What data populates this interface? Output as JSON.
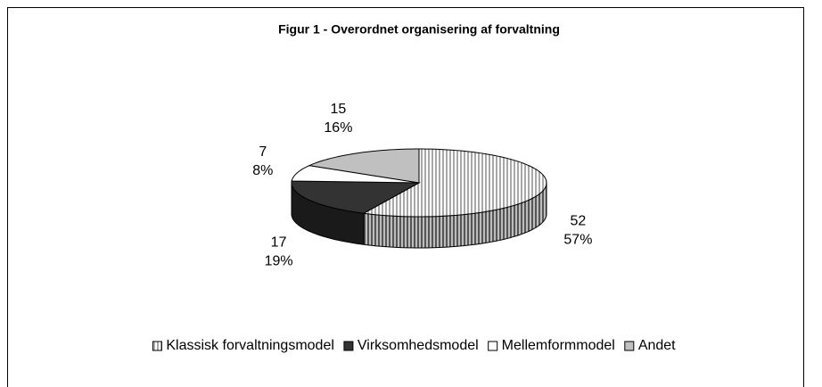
{
  "chart_data": {
    "type": "pie3d",
    "title": "Figur 1 - Overordnet organisering af forvaltning",
    "categories": [
      "Klassisk forvaltningsmodel",
      "Virksomhedsmodel",
      "Mellemformmodel",
      "Andet"
    ],
    "values": [
      52,
      17,
      7,
      15
    ],
    "percent_labels": [
      "57%",
      "19%",
      "8%",
      "16%"
    ],
    "colors": [
      "url(#stripes)",
      "#333333",
      "#ffffff",
      "#c0c0c0"
    ],
    "side_colors": [
      "url(#stripes-dark)",
      "#1a1a1a",
      "#e6e6e6",
      "#a0a0a0"
    ],
    "legend": "bottom"
  }
}
